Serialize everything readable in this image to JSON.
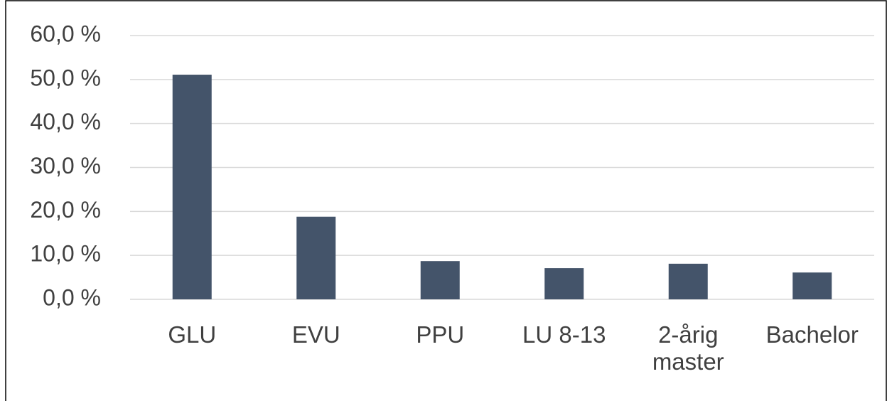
{
  "chart_data": {
    "type": "bar",
    "categories": [
      "GLU",
      "EVU",
      "PPU",
      "LU 8-13",
      "2-årig master",
      "Bachelor"
    ],
    "values": [
      51.1,
      18.8,
      8.7,
      7.1,
      8.1,
      6.1
    ],
    "color": "#44546a",
    "ylim": [
      0,
      60
    ],
    "yticks": [
      {
        "value": 0,
        "label": "0,0 %"
      },
      {
        "value": 10,
        "label": "10,0 %"
      },
      {
        "value": 20,
        "label": "20,0 %"
      },
      {
        "value": 30,
        "label": "30,0 %"
      },
      {
        "value": 40,
        "label": "40,0 %"
      },
      {
        "value": 50,
        "label": "50,0 %"
      },
      {
        "value": 60,
        "label": "60,0 %"
      }
    ],
    "grid": true
  }
}
